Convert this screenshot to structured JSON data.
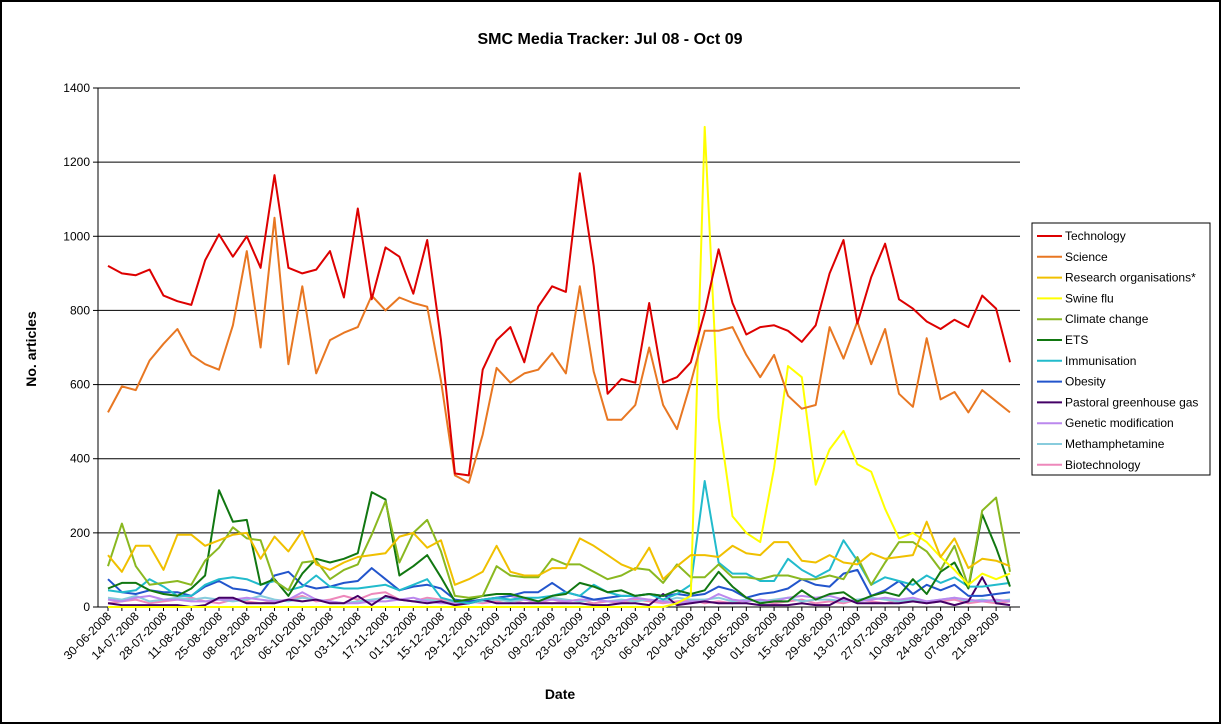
{
  "chart_data": {
    "type": "line",
    "title": "SMC Media Tracker: Jul 08 - Oct 09",
    "xlabel": "Date",
    "ylabel": "No. articles",
    "ylim": [
      0,
      1400
    ],
    "yticks": [
      0,
      200,
      400,
      600,
      800,
      1000,
      1200,
      1400
    ],
    "grid": "horizontal",
    "legend_position": "right",
    "x_tick_labels": [
      "30-06-2008",
      "14-07-2008",
      "28-07-2008",
      "11-08-2008",
      "25-08-2008",
      "08-09-2008",
      "22-09-2008",
      "06-10-2008",
      "20-10-2008",
      "03-11-2008",
      "17-11-2008",
      "01-12-2008",
      "15-12-2008",
      "29-12-2008",
      "12-01-2009",
      "26-01-2009",
      "09-02-2009",
      "23-02-2009",
      "09-03-2009",
      "23-03-2009",
      "06-04-2009",
      "20-04-2009",
      "04-05-2009",
      "18-05-2009",
      "01-06-2009",
      "15-06-2009",
      "29-06-2009",
      "13-07-2009",
      "27-07-2009",
      "10-08-2009",
      "24-08-2009",
      "07-09-2009",
      "21-09-2009"
    ],
    "series": [
      {
        "name": "Technology",
        "color": "#dd0000",
        "values": [
          920,
          900,
          895,
          910,
          840,
          825,
          815,
          935,
          1005,
          945,
          1000,
          915,
          1165,
          915,
          900,
          910,
          960,
          835,
          1075,
          830,
          970,
          945,
          845,
          990,
          720,
          360,
          355,
          640,
          720,
          755,
          660,
          810,
          865,
          850,
          1170,
          920,
          575,
          615,
          605,
          820,
          605,
          620,
          660,
          795,
          965,
          820,
          735,
          755,
          760,
          745,
          715,
          760,
          900,
          990,
          765,
          890,
          980,
          830,
          805,
          770,
          750,
          775,
          755,
          840,
          805,
          660
        ]
      },
      {
        "name": "Science",
        "color": "#e87722",
        "values": [
          525,
          595,
          585,
          665,
          710,
          750,
          680,
          655,
          640,
          760,
          960,
          700,
          1050,
          655,
          865,
          630,
          720,
          740,
          755,
          840,
          800,
          835,
          820,
          810,
          610,
          355,
          335,
          465,
          645,
          605,
          630,
          640,
          685,
          630,
          865,
          635,
          505,
          505,
          545,
          700,
          545,
          480,
          605,
          745,
          745,
          755,
          680,
          620,
          680,
          570,
          535,
          545,
          755,
          670,
          770,
          655,
          750,
          575,
          540,
          725,
          560,
          580,
          525,
          585,
          555,
          525
        ]
      },
      {
        "name": "Research organisations*",
        "color": "#f0c000",
        "values": [
          140,
          95,
          165,
          165,
          100,
          195,
          195,
          165,
          180,
          195,
          200,
          130,
          190,
          150,
          205,
          115,
          100,
          120,
          135,
          140,
          145,
          190,
          200,
          160,
          180,
          60,
          75,
          95,
          165,
          95,
          85,
          85,
          105,
          105,
          185,
          165,
          140,
          115,
          100,
          160,
          75,
          110,
          140,
          140,
          135,
          165,
          145,
          140,
          175,
          175,
          125,
          120,
          140,
          120,
          115,
          145,
          130,
          135,
          140,
          230,
          135,
          185,
          105,
          130,
          125,
          110
        ]
      },
      {
        "name": "Swine flu",
        "color": "#ffff00",
        "values": [
          0,
          0,
          0,
          0,
          0,
          0,
          0,
          0,
          0,
          0,
          0,
          0,
          0,
          0,
          0,
          0,
          0,
          0,
          0,
          0,
          0,
          0,
          0,
          0,
          0,
          0,
          0,
          0,
          0,
          0,
          0,
          0,
          0,
          0,
          0,
          0,
          0,
          0,
          0,
          0,
          0,
          10,
          30,
          1295,
          510,
          245,
          200,
          175,
          375,
          650,
          620,
          330,
          425,
          475,
          385,
          365,
          265,
          185,
          200,
          175,
          135,
          100,
          60,
          90,
          75,
          90
        ]
      },
      {
        "name": "Climate change",
        "color": "#8ab820",
        "values": [
          110,
          225,
          110,
          60,
          65,
          70,
          60,
          125,
          160,
          215,
          185,
          180,
          70,
          45,
          120,
          125,
          75,
          100,
          115,
          195,
          285,
          120,
          200,
          235,
          150,
          30,
          25,
          30,
          110,
          85,
          80,
          80,
          130,
          115,
          115,
          95,
          75,
          85,
          105,
          100,
          65,
          115,
          80,
          80,
          115,
          80,
          80,
          75,
          85,
          85,
          75,
          75,
          85,
          75,
          135,
          60,
          120,
          175,
          175,
          150,
          100,
          165,
          55,
          260,
          295,
          95
        ]
      },
      {
        "name": "ETS",
        "color": "#117711",
        "values": [
          50,
          65,
          65,
          45,
          35,
          30,
          50,
          85,
          315,
          230,
          235,
          60,
          75,
          30,
          90,
          130,
          120,
          130,
          145,
          310,
          290,
          85,
          110,
          140,
          80,
          15,
          20,
          30,
          35,
          35,
          25,
          15,
          30,
          35,
          65,
          55,
          40,
          45,
          30,
          35,
          30,
          45,
          35,
          45,
          95,
          55,
          25,
          10,
          15,
          15,
          45,
          20,
          35,
          40,
          15,
          30,
          40,
          30,
          75,
          35,
          95,
          120,
          50,
          250,
          160,
          55
        ]
      },
      {
        "name": "Immunisation",
        "color": "#22bbcc",
        "values": [
          45,
          40,
          45,
          75,
          55,
          30,
          30,
          60,
          75,
          80,
          75,
          60,
          70,
          45,
          55,
          85,
          55,
          50,
          50,
          55,
          60,
          45,
          60,
          75,
          25,
          15,
          10,
          20,
          25,
          20,
          25,
          25,
          30,
          40,
          30,
          60,
          40,
          30,
          30,
          35,
          20,
          35,
          60,
          340,
          120,
          90,
          90,
          70,
          70,
          130,
          100,
          80,
          100,
          180,
          125,
          60,
          80,
          70,
          60,
          85,
          65,
          80,
          55,
          55,
          60,
          65
        ]
      },
      {
        "name": "Obesity",
        "color": "#2255cc",
        "values": [
          75,
          40,
          35,
          45,
          40,
          40,
          30,
          55,
          70,
          50,
          45,
          35,
          85,
          95,
          60,
          50,
          55,
          65,
          70,
          105,
          75,
          45,
          55,
          60,
          50,
          20,
          15,
          20,
          25,
          30,
          40,
          40,
          65,
          40,
          30,
          20,
          25,
          30,
          30,
          35,
          30,
          35,
          30,
          35,
          55,
          45,
          25,
          35,
          40,
          50,
          75,
          60,
          55,
          90,
          100,
          30,
          45,
          70,
          35,
          60,
          45,
          60,
          30,
          30,
          35,
          40
        ]
      },
      {
        "name": "Pastoral greenhouse gas",
        "color": "#440066",
        "values": [
          10,
          5,
          5,
          5,
          5,
          5,
          0,
          5,
          25,
          25,
          10,
          10,
          10,
          20,
          15,
          20,
          10,
          10,
          30,
          5,
          30,
          20,
          15,
          10,
          15,
          5,
          10,
          20,
          10,
          10,
          10,
          10,
          10,
          10,
          10,
          5,
          5,
          10,
          10,
          5,
          35,
          5,
          10,
          15,
          10,
          10,
          10,
          5,
          5,
          5,
          10,
          5,
          5,
          25,
          10,
          10,
          10,
          10,
          15,
          10,
          15,
          5,
          15,
          80,
          10,
          5
        ]
      },
      {
        "name": "Genetic modification",
        "color": "#bb88ee",
        "values": [
          20,
          15,
          25,
          30,
          20,
          20,
          15,
          15,
          20,
          20,
          25,
          20,
          15,
          20,
          40,
          20,
          15,
          10,
          10,
          15,
          15,
          20,
          25,
          15,
          10,
          10,
          10,
          20,
          25,
          30,
          20,
          15,
          20,
          15,
          20,
          20,
          15,
          15,
          25,
          20,
          15,
          10,
          15,
          15,
          35,
          20,
          15,
          20,
          15,
          25,
          30,
          25,
          30,
          20,
          15,
          20,
          25,
          20,
          25,
          15,
          20,
          25,
          20,
          15,
          20,
          15
        ]
      },
      {
        "name": "Methamphetamine",
        "color": "#88ccdd",
        "values": [
          25,
          20,
          30,
          15,
          20,
          25,
          20,
          25,
          20,
          15,
          20,
          30,
          20,
          15,
          25,
          20,
          15,
          10,
          15,
          20,
          25,
          20,
          15,
          20,
          15,
          10,
          10,
          15,
          20,
          15,
          20,
          15,
          25,
          20,
          15,
          20,
          15,
          20,
          15,
          20,
          15,
          25,
          20,
          20,
          25,
          15,
          20,
          15,
          20,
          25,
          15,
          20,
          20,
          15,
          20,
          25,
          20,
          15,
          20,
          15,
          20,
          25,
          15,
          20,
          15,
          20
        ]
      },
      {
        "name": "Biotechnology",
        "color": "#ee88bb",
        "values": [
          10,
          15,
          20,
          10,
          15,
          20,
          25,
          15,
          10,
          20,
          15,
          10,
          15,
          20,
          30,
          15,
          20,
          30,
          20,
          35,
          40,
          20,
          15,
          25,
          20,
          10,
          15,
          10,
          15,
          20,
          10,
          15,
          10,
          15,
          20,
          10,
          15,
          10,
          20,
          15,
          10,
          15,
          20,
          10,
          15,
          10,
          20,
          15,
          10,
          15,
          20,
          10,
          15,
          10,
          20,
          15,
          10,
          20,
          15,
          10,
          15,
          20,
          10,
          15,
          10,
          15
        ]
      }
    ]
  }
}
